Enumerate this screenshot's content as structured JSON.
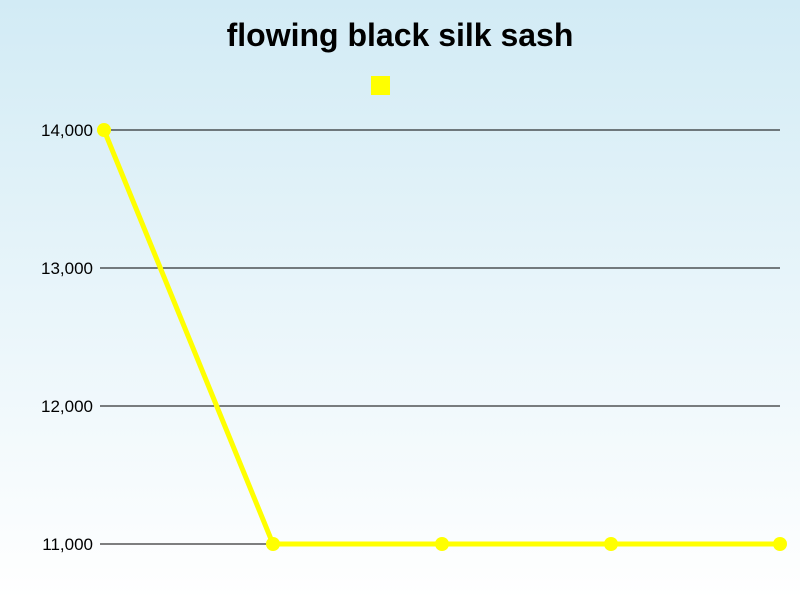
{
  "chart_data": {
    "type": "line",
    "title": "flowing black silk sash",
    "xlabel": "",
    "ylabel": "",
    "categories": [
      "",
      "",
      "",
      "",
      ""
    ],
    "series": [
      {
        "name": "",
        "color": "#ffff00",
        "values": [
          14000,
          11000,
          11000,
          11000,
          11000
        ]
      }
    ],
    "yticks": [
      11000,
      12000,
      13000,
      14000
    ],
    "ytick_labels": [
      "11,000",
      "12,000",
      "13,000",
      "14,000"
    ],
    "ylim": [
      11000,
      14000
    ],
    "grid": true,
    "legend": "top-center"
  }
}
